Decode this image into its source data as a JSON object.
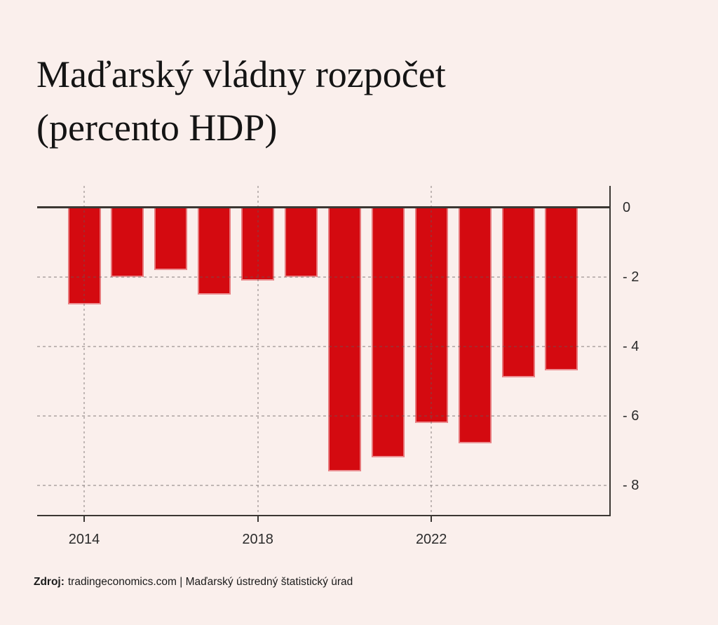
{
  "page": {
    "background_color": "#FAEFEC"
  },
  "title": {
    "line1": "Maďarský vládny rozpočet",
    "line2": "(percento HDP)"
  },
  "source": {
    "label": "Zdroj:",
    "text": "tradingeconomics.com | Maďarský ústredný štatistický úrad"
  },
  "chart_data": {
    "type": "bar",
    "title": "Maďarský vládny rozpočet (percento HDP)",
    "categories": [
      "2014",
      "2015",
      "2016",
      "2017",
      "2018",
      "2019",
      "2020",
      "2021",
      "2022",
      "2023",
      "2024",
      "2025"
    ],
    "values": [
      -2.8,
      -2.0,
      -1.8,
      -2.5,
      -2.1,
      -2.0,
      -7.6,
      -7.2,
      -6.2,
      -6.8,
      -4.9,
      -4.7
    ],
    "xlabel": "",
    "ylabel": "",
    "ylim": [
      -8.85,
      0.6
    ],
    "y_ticks": [
      0,
      -2,
      -4,
      -6,
      -8
    ],
    "y_tick_labels": [
      "0",
      "- 2",
      "- 4",
      "- 6",
      "- 8"
    ],
    "x_tick_labels": [
      "2014",
      "2018",
      "2022"
    ],
    "grid": "horizontal dashed lines at y ticks and vertical dotted lines at labeled years, drawn over bars; y axis on right side",
    "legend_position": "none",
    "bar_color": "#D40A10",
    "axis_color": "#3B3733",
    "label_color": "#2B2B2B"
  }
}
